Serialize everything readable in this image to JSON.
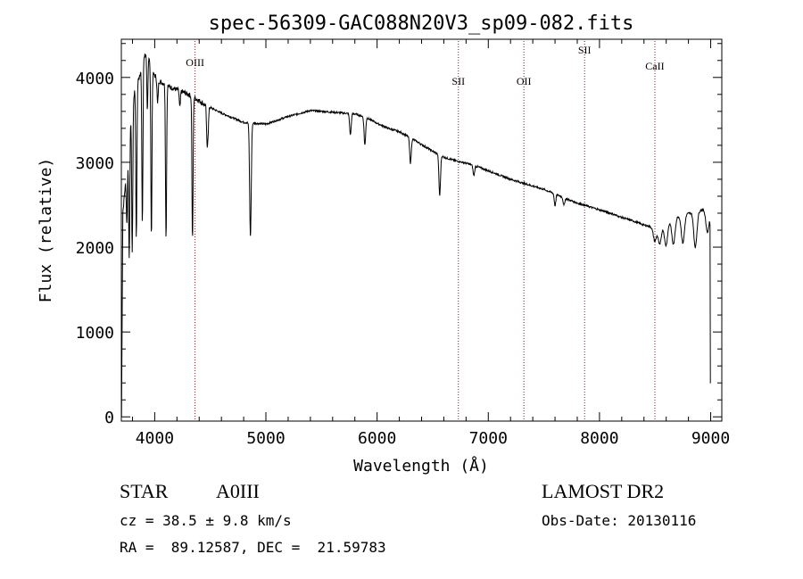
{
  "chart_data": {
    "type": "line",
    "title": "spec-56309-GAC088N20V3_sp09-082.fits",
    "xlabel": "Wavelength (Å)",
    "ylabel": "Flux (relative)",
    "xlim": [
      3700,
      9100
    ],
    "ylim": [
      -50,
      4450
    ],
    "xticks": [
      4000,
      5000,
      6000,
      7000,
      8000,
      9000
    ],
    "yticks": [
      0,
      1000,
      2000,
      3000,
      4000
    ],
    "grid": false,
    "colors": {
      "spectrum": "#000000",
      "lines": "#8b1a1a"
    },
    "spectral_lines": [
      {
        "name": "OIII",
        "x": 4363
      },
      {
        "name": "SII",
        "x": 6731
      },
      {
        "name": "OII",
        "x": 7320
      },
      {
        "name": "SII",
        "x": 7866
      },
      {
        "name": "CaII",
        "x": 8498
      }
    ],
    "continuum": [
      [
        3700,
        2200
      ],
      [
        3740,
        2800
      ],
      [
        3780,
        3500
      ],
      [
        3820,
        3850
      ],
      [
        3860,
        4000
      ],
      [
        3900,
        4250
      ],
      [
        3940,
        4300
      ],
      [
        3980,
        4050
      ],
      [
        4050,
        3950
      ],
      [
        4150,
        3880
      ],
      [
        4250,
        3830
      ],
      [
        4350,
        3770
      ],
      [
        4450,
        3680
      ],
      [
        4600,
        3580
      ],
      [
        4800,
        3470
      ],
      [
        5000,
        3450
      ],
      [
        5200,
        3540
      ],
      [
        5400,
        3610
      ],
      [
        5600,
        3590
      ],
      [
        5800,
        3570
      ],
      [
        5900,
        3530
      ],
      [
        6000,
        3460
      ],
      [
        6100,
        3400
      ],
      [
        6200,
        3360
      ],
      [
        6300,
        3290
      ],
      [
        6400,
        3210
      ],
      [
        6500,
        3130
      ],
      [
        6600,
        3060
      ],
      [
        6700,
        3020
      ],
      [
        6800,
        2990
      ],
      [
        6900,
        2950
      ],
      [
        7000,
        2900
      ],
      [
        7100,
        2850
      ],
      [
        7200,
        2800
      ],
      [
        7300,
        2760
      ],
      [
        7400,
        2720
      ],
      [
        7500,
        2680
      ],
      [
        7600,
        2630
      ],
      [
        7700,
        2570
      ],
      [
        7800,
        2520
      ],
      [
        7900,
        2480
      ],
      [
        8000,
        2440
      ],
      [
        8100,
        2400
      ],
      [
        8200,
        2350
      ],
      [
        8300,
        2310
      ],
      [
        8400,
        2260
      ],
      [
        8500,
        2230
      ],
      [
        8600,
        2280
      ],
      [
        8700,
        2360
      ],
      [
        8800,
        2400
      ],
      [
        8900,
        2430
      ],
      [
        8950,
        2450
      ],
      [
        8990,
        2400
      ],
      [
        9000,
        2200
      ]
    ],
    "absorption_lines": [
      {
        "x": 3750,
        "depth": 700
      },
      {
        "x": 3771,
        "depth": 1500
      },
      {
        "x": 3798,
        "depth": 1700
      },
      {
        "x": 3835,
        "depth": 1800
      },
      {
        "x": 3889,
        "depth": 1900
      },
      {
        "x": 3934,
        "depth": 700
      },
      {
        "x": 3970,
        "depth": 2000
      },
      {
        "x": 4026,
        "depth": 300
      },
      {
        "x": 4102,
        "depth": 1800
      },
      {
        "x": 4226,
        "depth": 200
      },
      {
        "x": 4340,
        "depth": 1700
      },
      {
        "x": 4471,
        "depth": 450
      },
      {
        "x": 4481,
        "depth": 250
      },
      {
        "x": 4861,
        "depth": 1350
      },
      {
        "x": 5890,
        "depth": 330
      },
      {
        "x": 5760,
        "depth": 250
      },
      {
        "x": 6300,
        "depth": 300
      },
      {
        "x": 6563,
        "depth": 480
      },
      {
        "x": 6870,
        "depth": 120
      },
      {
        "x": 7600,
        "depth": 140
      },
      {
        "x": 7680,
        "depth": 90
      },
      {
        "x": 8498,
        "depth": 160
      },
      {
        "x": 8542,
        "depth": 220
      },
      {
        "x": 8598,
        "depth": 260
      },
      {
        "x": 8665,
        "depth": 300
      },
      {
        "x": 8750,
        "depth": 330
      },
      {
        "x": 8862,
        "depth": 420
      },
      {
        "x": 8970,
        "depth": 250
      }
    ]
  },
  "info": {
    "object_class": "STAR",
    "subclass": "A0III",
    "survey": "LAMOST DR2",
    "cz": "cz = 38.5 ± 9.8 km/s",
    "obs_date": "Obs-Date: 20130116",
    "coords": "RA =  89.12587, DEC =  21.59783"
  }
}
